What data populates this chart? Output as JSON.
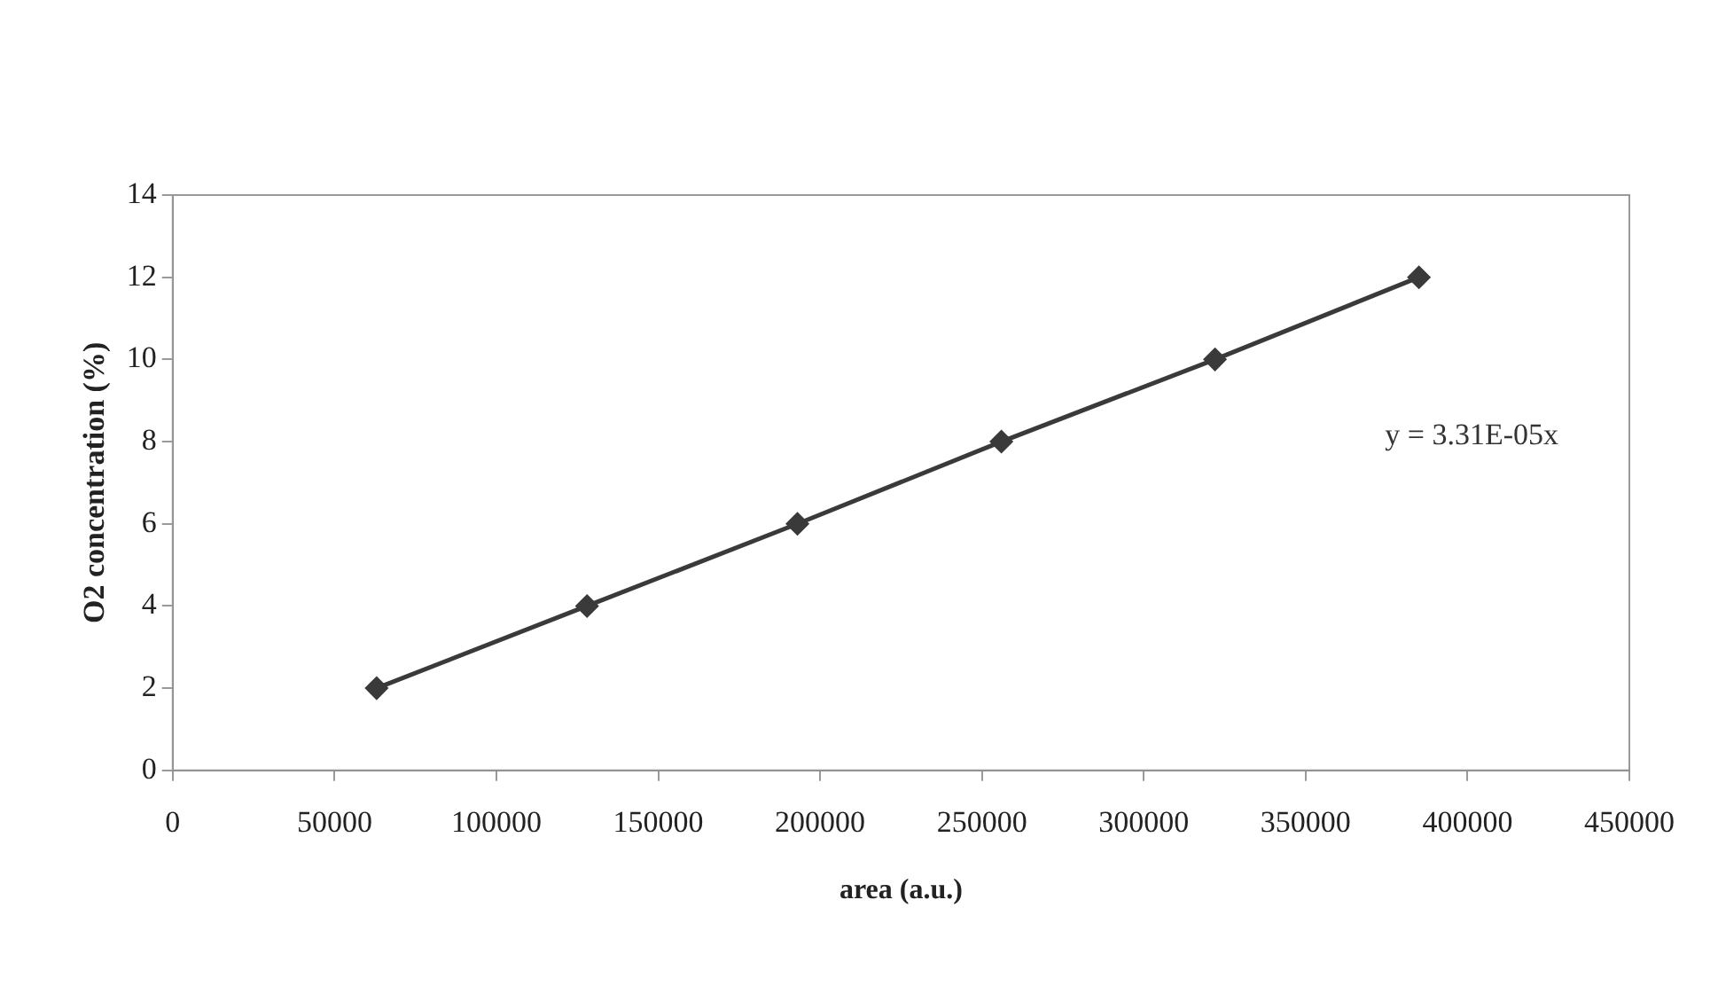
{
  "chart_data": {
    "type": "line",
    "xlabel": "area (a.u.)",
    "ylabel": "O2 concentration (%)",
    "x": [
      63000,
      128000,
      193000,
      256000,
      322000,
      385000
    ],
    "series": [
      {
        "color": "#3a3a3a",
        "values": [
          2,
          4,
          6,
          8,
          10,
          12
        ]
      }
    ],
    "xlim": [
      0,
      450000
    ],
    "xticks": [
      0,
      50000,
      100000,
      150000,
      200000,
      250000,
      300000,
      350000,
      400000,
      450000
    ],
    "ylim": [
      0,
      14
    ],
    "yticks": [
      0,
      2,
      4,
      6,
      8,
      10,
      12,
      14
    ],
    "marker": "diamond",
    "line_style": "solid",
    "grid": false,
    "legend": false,
    "annotations": [
      "y = 3.31E-05x"
    ]
  }
}
